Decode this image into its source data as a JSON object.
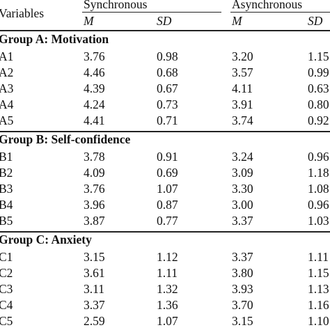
{
  "table": {
    "header": {
      "variables": "Variables",
      "synchronous": "Synchronous",
      "asynchronous": "Asynchronous",
      "m": "M",
      "sd": "SD"
    },
    "groups": [
      {
        "title": "Group A: Motivation",
        "rows": [
          {
            "label": "A1",
            "sync_m": "3.76",
            "sync_sd": "0.98",
            "async_m": "3.20",
            "async_sd": "1.15"
          },
          {
            "label": "A2",
            "sync_m": "4.46",
            "sync_sd": "0.68",
            "async_m": "3.57",
            "async_sd": "0.99"
          },
          {
            "label": "A3",
            "sync_m": "4.39",
            "sync_sd": "0.67",
            "async_m": "4.11",
            "async_sd": "0.63"
          },
          {
            "label": "A4",
            "sync_m": "4.24",
            "sync_sd": "0.73",
            "async_m": "3.91",
            "async_sd": "0.80"
          },
          {
            "label": "A5",
            "sync_m": "4.41",
            "sync_sd": "0.71",
            "async_m": "3.74",
            "async_sd": "0.92"
          }
        ]
      },
      {
        "title": "Group B: Self-confidence",
        "rows": [
          {
            "label": "B1",
            "sync_m": "3.78",
            "sync_sd": "0.91",
            "async_m": "3.24",
            "async_sd": "0.96"
          },
          {
            "label": "B2",
            "sync_m": "4.09",
            "sync_sd": "0.69",
            "async_m": "3.09",
            "async_sd": "1.18"
          },
          {
            "label": "B3",
            "sync_m": "3.76",
            "sync_sd": "1.07",
            "async_m": "3.30",
            "async_sd": "1.08"
          },
          {
            "label": "B4",
            "sync_m": "3.96",
            "sync_sd": "0.87",
            "async_m": "3.00",
            "async_sd": "0.96"
          },
          {
            "label": "B5",
            "sync_m": "3.87",
            "sync_sd": "0.77",
            "async_m": "3.37",
            "async_sd": "1.03"
          }
        ]
      },
      {
        "title": "Group C: Anxiety",
        "rows": [
          {
            "label": "C1",
            "sync_m": "3.15",
            "sync_sd": "1.12",
            "async_m": "3.37",
            "async_sd": "1.11"
          },
          {
            "label": "C2",
            "sync_m": "3.61",
            "sync_sd": "1.11",
            "async_m": "3.80",
            "async_sd": "1.15"
          },
          {
            "label": "C3",
            "sync_m": "3.11",
            "sync_sd": "1.32",
            "async_m": "3.93",
            "async_sd": "1.13"
          },
          {
            "label": "C4",
            "sync_m": "3.37",
            "sync_sd": "1.36",
            "async_m": "3.70",
            "async_sd": "1.16"
          },
          {
            "label": "C5",
            "sync_m": "2.59",
            "sync_sd": "1.07",
            "async_m": "3.15",
            "async_sd": "1.10"
          }
        ]
      }
    ]
  }
}
